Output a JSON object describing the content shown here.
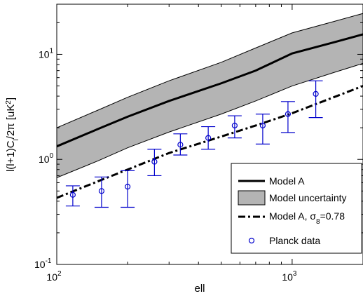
{
  "chart_data": {
    "type": "line",
    "title": "",
    "xlabel": "ell",
    "ylabel_parts": {
      "main": "l(l+1)C",
      "sub": "l",
      "after": "/2π [uK",
      "sup": "2",
      "close": "]"
    },
    "xscale": "log",
    "yscale": "log",
    "xlim": [
      100,
      2000
    ],
    "ylim": [
      0.1,
      30
    ],
    "grid": false,
    "legend_position": "bottom-right",
    "x_ticks": [
      {
        "value": 100,
        "base": "10",
        "exp": "2"
      },
      {
        "value": 1000,
        "base": "10",
        "exp": "3"
      }
    ],
    "y_ticks": [
      {
        "value": 0.1,
        "base": "10",
        "exp": "-1"
      },
      {
        "value": 1,
        "base": "10",
        "exp": "0"
      },
      {
        "value": 10,
        "base": "10",
        "exp": "1"
      }
    ],
    "series": [
      {
        "name": "Model A",
        "kind": "line",
        "color": "#000000",
        "x": [
          100,
          150,
          200,
          300,
          500,
          700,
          1000,
          1500,
          2000
        ],
        "y": [
          1.33,
          1.95,
          2.55,
          3.6,
          5.3,
          7.0,
          10.2,
          13.0,
          15.5
        ]
      },
      {
        "name": "Model uncertainty",
        "kind": "band",
        "color": "#b4b4b4",
        "x": [
          100,
          150,
          200,
          300,
          500,
          700,
          1000,
          1500,
          2000
        ],
        "y_low": [
          0.67,
          0.97,
          1.29,
          1.82,
          2.7,
          3.6,
          5.0,
          6.7,
          8.2
        ],
        "y_high": [
          2.0,
          2.95,
          3.9,
          5.6,
          8.4,
          11.5,
          16.0,
          20.5,
          24.5
        ]
      },
      {
        "name": "Model A, σ₈=0.78",
        "legend_parts": {
          "main": "Model A, σ",
          "sub": "8",
          "after": "=0.78"
        },
        "kind": "dashdot",
        "color": "#000000",
        "x": [
          100,
          150,
          200,
          300,
          500,
          700,
          1000,
          1500,
          2000
        ],
        "y": [
          0.43,
          0.62,
          0.8,
          1.15,
          1.65,
          2.1,
          2.75,
          3.9,
          5.0
        ]
      },
      {
        "name": "Planck data",
        "kind": "errorbar",
        "color": "#0000cc",
        "x": [
          117,
          155,
          200,
          260,
          335,
          440,
          570,
          750,
          960,
          1260
        ],
        "y": [
          0.46,
          0.5,
          0.55,
          0.95,
          1.38,
          1.6,
          2.1,
          2.1,
          2.7,
          4.2
        ],
        "y_low": [
          0.36,
          0.35,
          0.35,
          0.7,
          1.1,
          1.25,
          1.6,
          1.4,
          1.8,
          2.5
        ],
        "y_high": [
          0.56,
          0.68,
          0.78,
          1.25,
          1.75,
          2.05,
          2.6,
          2.7,
          3.55,
          5.6
        ]
      }
    ],
    "legend": [
      {
        "label": "Model A",
        "kind": "line"
      },
      {
        "label": "Model uncertainty",
        "kind": "band"
      },
      {
        "label": "Model A, σ₈=0.78",
        "kind": "dashdot"
      },
      {
        "label": "Planck data",
        "kind": "errorbar"
      }
    ]
  }
}
